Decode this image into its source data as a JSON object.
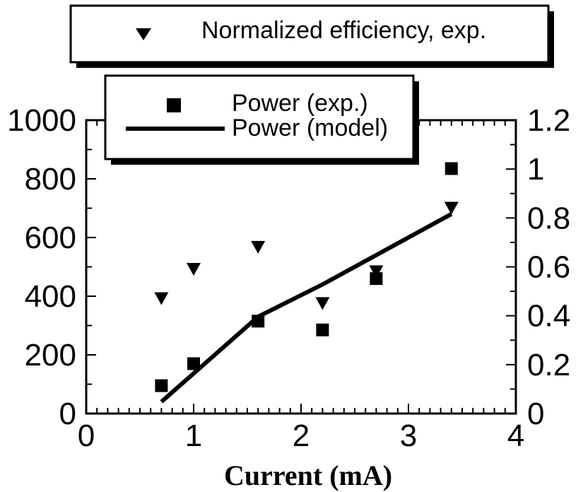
{
  "chart_data": {
    "type": "scatter",
    "xlabel": "Current (mA)",
    "xlim": [
      0,
      4
    ],
    "ylim_left": [
      0,
      1000
    ],
    "ylim_right": [
      0,
      1.2
    ],
    "x_ticks": [
      "0",
      "1",
      "2",
      "3",
      "4"
    ],
    "y_left_ticks": [
      "0",
      "200",
      "400",
      "600",
      "800",
      "1000"
    ],
    "y_right_ticks": [
      "0",
      "0.2",
      "0.4",
      "0.6",
      "0.8",
      "1",
      "1.2"
    ],
    "legend_top": {
      "label": "Normalized efficiency, exp."
    },
    "legend_main": {
      "items": [
        "Power (exp.)",
        "Power (model)"
      ]
    },
    "series": [
      {
        "name": "Normalized efficiency, exp.",
        "axis": "right",
        "marker": "triangle-down",
        "x": [
          0.7,
          1.0,
          1.6,
          2.2,
          2.7,
          3.4
        ],
        "y": [
          0.47,
          0.59,
          0.68,
          0.45,
          0.58,
          0.84
        ]
      },
      {
        "name": "Power (exp.)",
        "axis": "left",
        "marker": "square",
        "x": [
          0.7,
          1.0,
          1.6,
          2.2,
          2.7,
          3.4
        ],
        "y": [
          95,
          170,
          315,
          285,
          460,
          835
        ]
      },
      {
        "name": "Power (model)",
        "axis": "left",
        "marker": "line",
        "x": [
          0.7,
          1.6,
          2.2,
          2.7,
          3.4
        ],
        "y": [
          40,
          330,
          440,
          540,
          680
        ]
      }
    ]
  }
}
